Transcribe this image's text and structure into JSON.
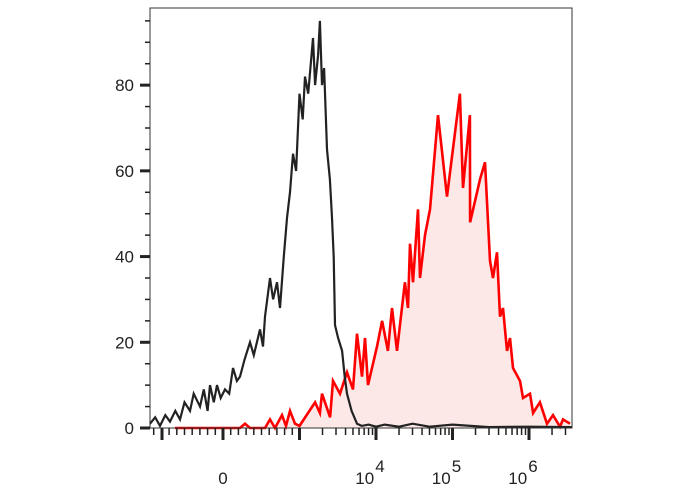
{
  "chart_data": {
    "type": "area",
    "title": "",
    "xlabel": "",
    "ylabel": "",
    "x_scale": "biexponential",
    "xlim": [
      -950,
      3600000
    ],
    "ylim": [
      0,
      98
    ],
    "grid": false,
    "y_ticks": [
      {
        "value": 0,
        "label": "0"
      },
      {
        "value": 20,
        "label": "20"
      },
      {
        "value": 40,
        "label": "40"
      },
      {
        "value": 60,
        "label": "60"
      },
      {
        "value": 80,
        "label": "80"
      }
    ],
    "x_ticks": [
      {
        "value": 0,
        "label": "0",
        "exp": ""
      },
      {
        "value": 10000,
        "label": "10",
        "exp": "4"
      },
      {
        "value": 100000,
        "label": "10",
        "exp": "5"
      },
      {
        "value": 1000000,
        "label": "10",
        "exp": "6"
      }
    ],
    "series": [
      {
        "color": "#222222",
        "filled": false,
        "points": [
          [
            -948,
            1
          ],
          [
            -880,
            2.5
          ],
          [
            -818,
            0.5
          ],
          [
            -750,
            3
          ],
          [
            -688,
            1.5
          ],
          [
            -620,
            4
          ],
          [
            -558,
            2
          ],
          [
            -500,
            6
          ],
          [
            -429,
            4
          ],
          [
            -380,
            8
          ],
          [
            -299,
            5
          ],
          [
            -250,
            9
          ],
          [
            -200,
            4
          ],
          [
            -169,
            10
          ],
          [
            -120,
            6
          ],
          [
            -78,
            10
          ],
          [
            -30,
            7
          ],
          [
            26,
            9
          ],
          [
            80,
            8
          ],
          [
            130,
            14
          ],
          [
            180,
            11
          ],
          [
            221,
            12
          ],
          [
            280,
            16
          ],
          [
            351,
            20
          ],
          [
            400,
            17
          ],
          [
            481,
            23
          ],
          [
            520,
            19
          ],
          [
            546,
            26
          ],
          [
            610,
            35
          ],
          [
            650,
            30
          ],
          [
            701,
            34
          ],
          [
            740,
            28
          ],
          [
            790,
            40
          ],
          [
            831,
            49
          ],
          [
            870,
            55
          ],
          [
            909,
            64
          ],
          [
            950,
            60
          ],
          [
            1000,
            78
          ],
          [
            1100,
            72
          ],
          [
            1180,
            82
          ],
          [
            1300,
            78
          ],
          [
            1500,
            91
          ],
          [
            1600,
            80
          ],
          [
            1750,
            87
          ],
          [
            1850,
            95
          ],
          [
            1970,
            80
          ],
          [
            2100,
            84
          ],
          [
            2290,
            65
          ],
          [
            2500,
            58
          ],
          [
            2660,
            49
          ],
          [
            2800,
            40
          ],
          [
            2910,
            24
          ],
          [
            3200,
            21
          ],
          [
            3600,
            18
          ],
          [
            3900,
            12
          ],
          [
            4180,
            8
          ],
          [
            4800,
            4
          ],
          [
            5650,
            1
          ],
          [
            6500,
            0.5
          ],
          [
            8000,
            0.8
          ],
          [
            10000,
            0.3
          ],
          [
            13000,
            0.8
          ],
          [
            20000,
            0.3
          ],
          [
            30000,
            1
          ],
          [
            50000,
            0.3
          ],
          [
            100000,
            0.8
          ],
          [
            300000,
            0.2
          ],
          [
            1000000,
            0.3
          ],
          [
            3600000,
            0.2
          ]
        ]
      },
      {
        "color": "#ff0000",
        "fill": "#fde8e8",
        "filled": true,
        "points": [
          [
            -623,
            0
          ],
          [
            221,
            0
          ],
          [
            286,
            1
          ],
          [
            351,
            0
          ],
          [
            546,
            0
          ],
          [
            610,
            2
          ],
          [
            675,
            0
          ],
          [
            766,
            3
          ],
          [
            818,
            0.5
          ],
          [
            870,
            4
          ],
          [
            935,
            1
          ],
          [
            1000,
            0.5
          ],
          [
            1600,
            6
          ],
          [
            1850,
            3.5
          ],
          [
            1970,
            8
          ],
          [
            2510,
            2.5
          ],
          [
            2740,
            11
          ],
          [
            3380,
            8
          ],
          [
            4180,
            13
          ],
          [
            5000,
            9
          ],
          [
            5650,
            22
          ],
          [
            6570,
            12
          ],
          [
            7180,
            21
          ],
          [
            7850,
            10
          ],
          [
            10300,
            19
          ],
          [
            12000,
            25
          ],
          [
            14300,
            18
          ],
          [
            16200,
            28
          ],
          [
            18800,
            18
          ],
          [
            23900,
            34
          ],
          [
            26200,
            28
          ],
          [
            27800,
            43
          ],
          [
            30500,
            34
          ],
          [
            35400,
            51
          ],
          [
            37600,
            35
          ],
          [
            43700,
            45
          ],
          [
            50800,
            51
          ],
          [
            64600,
            73
          ],
          [
            84700,
            54
          ],
          [
            125000,
            78
          ],
          [
            137000,
            56
          ],
          [
            169000,
            73
          ],
          [
            170000,
            48
          ],
          [
            229000,
            58
          ],
          [
            266000,
            62
          ],
          [
            309000,
            39
          ],
          [
            338000,
            35
          ],
          [
            382000,
            41
          ],
          [
            418000,
            26
          ],
          [
            457000,
            28
          ],
          [
            515000,
            18
          ],
          [
            565000,
            21
          ],
          [
            618000,
            14
          ],
          [
            763000,
            11
          ],
          [
            835000,
            7
          ],
          [
            1030000,
            8
          ],
          [
            1130000,
            3.5
          ],
          [
            1390000,
            6
          ],
          [
            1720000,
            1
          ],
          [
            2060000,
            3
          ],
          [
            2540000,
            0.3
          ],
          [
            2780000,
            2
          ],
          [
            3430000,
            1
          ]
        ]
      }
    ]
  }
}
